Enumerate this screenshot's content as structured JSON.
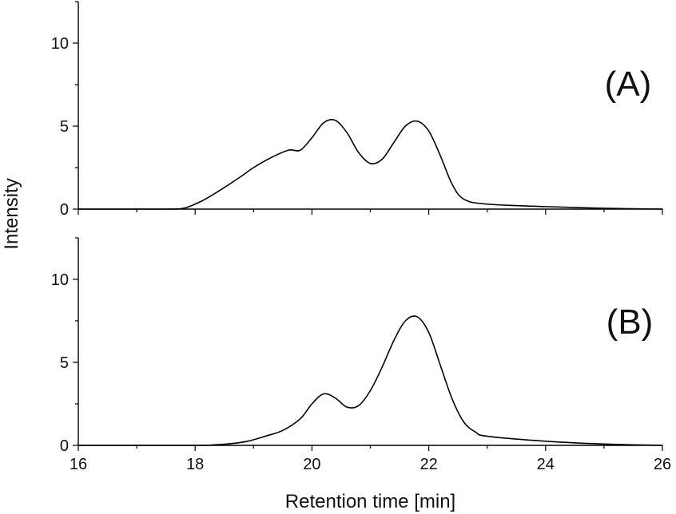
{
  "chart_data": {
    "type": "line",
    "xlabel": "Retention time [min]",
    "ylabel": "Intensity",
    "xlim": [
      16,
      26
    ],
    "x_ticks": [
      16,
      18,
      20,
      22,
      24,
      26
    ],
    "x_minor_step": 1,
    "grid": false,
    "colors": {
      "line": "#000000",
      "axis": "#000000",
      "text": "#111111"
    },
    "panels": [
      {
        "label": "(A)",
        "ylim": [
          0,
          12.5
        ],
        "y_ticks": [
          0,
          5,
          10
        ],
        "y_minor_step": 2.5,
        "series": [
          {
            "x": [
              16,
              17.5,
              17.8,
              18.0,
              18.2,
              18.5,
              18.8,
              19.0,
              19.3,
              19.6,
              19.8,
              20.0,
              20.2,
              20.4,
              20.6,
              20.8,
              21.0,
              21.2,
              21.4,
              21.6,
              21.8,
              22.0,
              22.2,
              22.4,
              22.6,
              23.0,
              24.0,
              25.0,
              26.0
            ],
            "y": [
              0,
              0,
              0.05,
              0.3,
              0.65,
              1.3,
              2.0,
              2.5,
              3.1,
              3.55,
              3.55,
              4.3,
              5.2,
              5.35,
              4.6,
              3.4,
              2.75,
              3.0,
              4.0,
              5.0,
              5.3,
              4.7,
              3.2,
              1.5,
              0.6,
              0.3,
              0.15,
              0.05,
              0
            ]
          }
        ]
      },
      {
        "label": "(B)",
        "ylim": [
          0,
          12.5
        ],
        "y_ticks": [
          0,
          5,
          10
        ],
        "y_minor_step": 2.5,
        "series": [
          {
            "x": [
              16,
              18.0,
              18.3,
              18.6,
              18.9,
              19.2,
              19.5,
              19.8,
              20.0,
              20.2,
              20.4,
              20.6,
              20.8,
              21.0,
              21.2,
              21.4,
              21.6,
              21.8,
              22.0,
              22.2,
              22.4,
              22.6,
              22.8,
              23.0,
              24.0,
              25.0,
              26.0
            ],
            "y": [
              0,
              0,
              0.03,
              0.1,
              0.25,
              0.55,
              0.9,
              1.6,
              2.5,
              3.1,
              2.85,
              2.3,
              2.4,
              3.3,
              4.7,
              6.3,
              7.5,
              7.75,
              6.8,
              4.8,
              2.8,
              1.4,
              0.8,
              0.55,
              0.25,
              0.08,
              0
            ]
          }
        ]
      }
    ]
  }
}
